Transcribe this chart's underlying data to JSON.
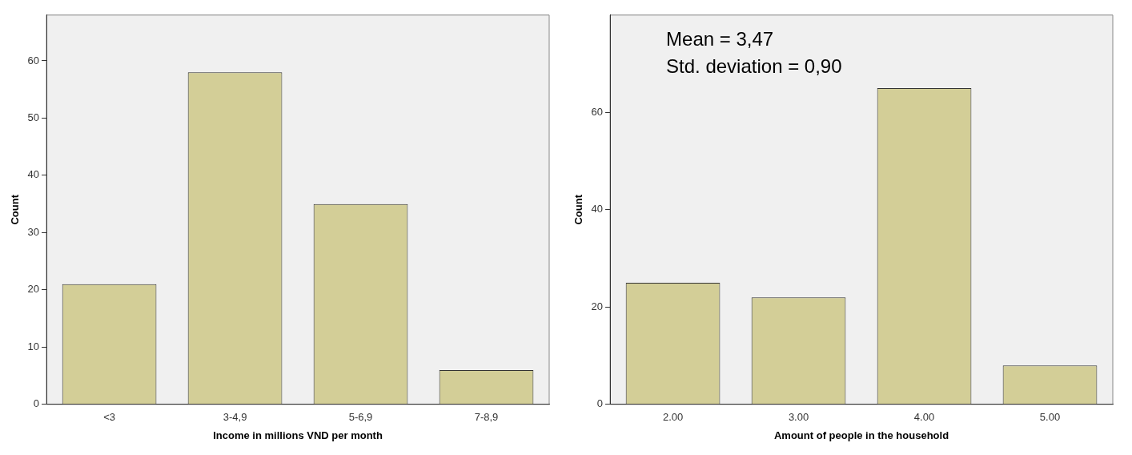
{
  "chart_data": [
    {
      "type": "bar",
      "categories": [
        "<3",
        "3-4,9",
        "5-6,9",
        "7-8,9"
      ],
      "values": [
        21,
        58,
        35,
        6
      ],
      "color": "#d3ce97",
      "ylim": [
        0,
        68
      ],
      "yticks": [
        0,
        10,
        20,
        30,
        40,
        50,
        60
      ],
      "xlabel": "Income in millions VND per month",
      "ylabel": "Count",
      "grid": false,
      "legend": false
    },
    {
      "type": "bar",
      "categories": [
        "2.00",
        "3.00",
        "4.00",
        "5.00"
      ],
      "values": [
        25,
        22,
        65,
        8
      ],
      "color": "#d3ce97",
      "ylim": [
        0,
        80
      ],
      "yticks": [
        0,
        20,
        40,
        60
      ],
      "xlabel": "Amount of people in the household",
      "ylabel": "Count",
      "grid": false,
      "legend": false,
      "annotations": [
        "Mean = 3,47",
        "Std. deviation = 0,90"
      ]
    }
  ]
}
